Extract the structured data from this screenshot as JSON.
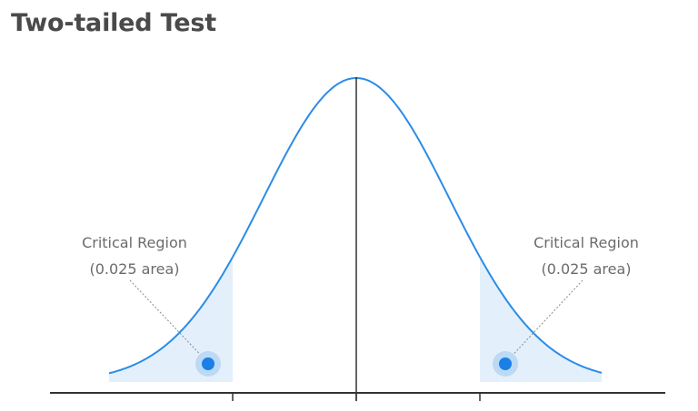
{
  "title": "Two-tailed Test",
  "colors": {
    "curve": "#2b8ce6",
    "shade": "#e3f0fb",
    "marker": "#1a7fe6",
    "marker_halo": "#bcd9f5",
    "axis": "#333333",
    "title": "#4a4a4a",
    "label": "#6b6b6b"
  },
  "regions": {
    "left": {
      "label_line1": "Critical Region",
      "label_line2": "(0.025 area)"
    },
    "right": {
      "label_line1": "Critical Region",
      "label_line2": "(0.025 area)"
    }
  }
}
